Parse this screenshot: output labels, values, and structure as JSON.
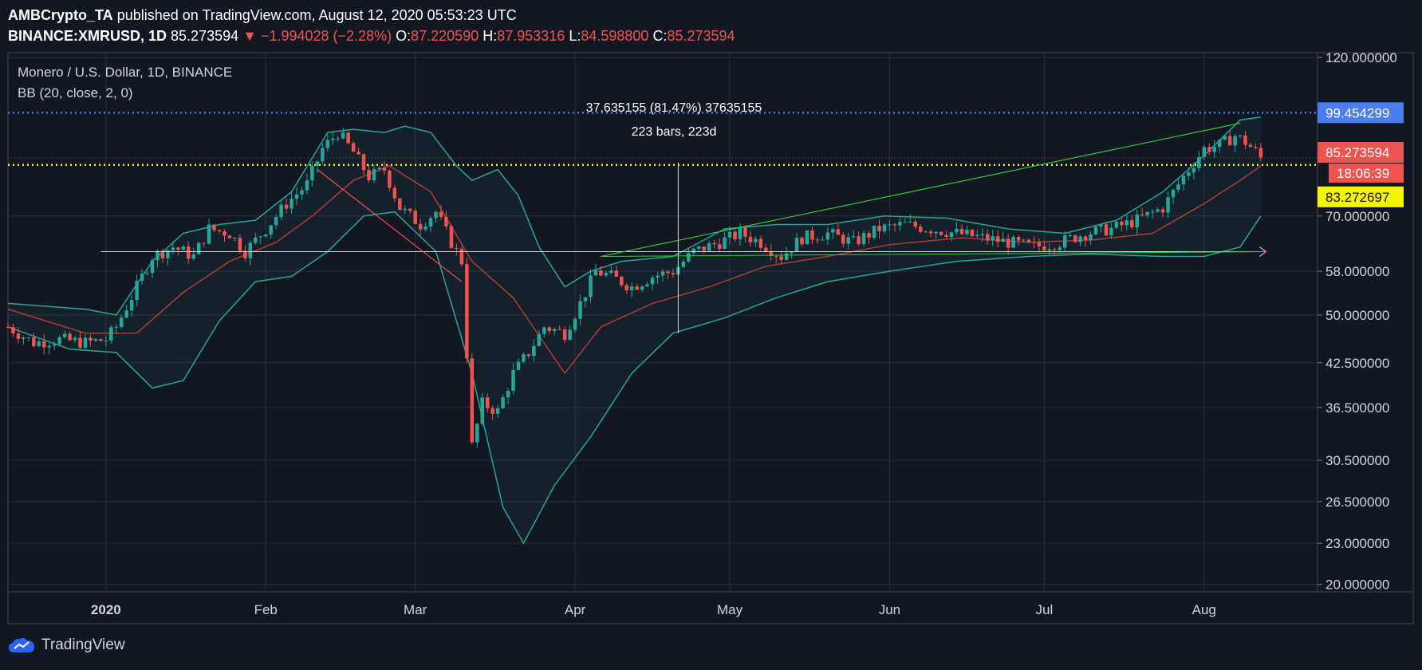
{
  "header": {
    "author": "AMBCrypto_TA",
    "published": "published on TradingView.com, August 12, 2020 05:53:23 UTC",
    "symbol": "BINANCE:XMRUSD, 1D",
    "last": "85.273594",
    "change": "▼ −1.994028 (−2.28%)",
    "o_label": "O:",
    "o": "87.220590",
    "h_label": "H:",
    "h": "87.953316",
    "l_label": "L:",
    "l": "84.598800",
    "c_label": "C:",
    "c": "85.273594"
  },
  "legend": {
    "title": "Monero / U.S. Dollar, 1D, BINANCE",
    "indicator": "BB (20, close, 2, 0)"
  },
  "footer": {
    "brand": "TradingView"
  },
  "colors": {
    "background": "#131722",
    "grid": "#2a2e39",
    "up": "#26a69a",
    "down": "#ef5350",
    "band": "#26a69a",
    "basis": "#b23a3a",
    "blue_line": "#4a7ef0",
    "yellow_line": "#f5f500",
    "trend": "#2ecc40"
  },
  "chart_data": {
    "type": "candlestick",
    "y_scale": "log",
    "ylim": [
      19.5,
      122
    ],
    "y_ticks": [
      {
        "value": 120,
        "label": "120.000000"
      },
      {
        "value": 70,
        "label": "70.000000"
      },
      {
        "value": 58,
        "label": "58.000000"
      },
      {
        "value": 50,
        "label": "50.000000"
      },
      {
        "value": 42.5,
        "label": "42.500000"
      },
      {
        "value": 36.5,
        "label": "36.500000"
      },
      {
        "value": 30.5,
        "label": "30.500000"
      },
      {
        "value": 26.5,
        "label": "26.500000"
      },
      {
        "value": 23,
        "label": "23.000000"
      },
      {
        "value": 20,
        "label": "20.000000"
      }
    ],
    "x_ticks": [
      {
        "date": "2020-01-01",
        "label": "2020"
      },
      {
        "date": "2020-02-01",
        "label": "Feb"
      },
      {
        "date": "2020-03-01",
        "label": "Mar"
      },
      {
        "date": "2020-04-01",
        "label": "Apr"
      },
      {
        "date": "2020-05-01",
        "label": "May"
      },
      {
        "date": "2020-06-01",
        "label": "Jun"
      },
      {
        "date": "2020-07-01",
        "label": "Jul"
      },
      {
        "date": "2020-08-01",
        "label": "Aug"
      }
    ],
    "x_range": [
      "2019-12-13",
      "2020-08-23"
    ],
    "closes": [
      {
        "date": "2019-12-13",
        "close": 48
      },
      {
        "date": "2019-12-18",
        "close": 45.5
      },
      {
        "date": "2019-12-23",
        "close": 46
      },
      {
        "date": "2019-12-28",
        "close": 45.5
      },
      {
        "date": "2020-01-01",
        "close": 46
      },
      {
        "date": "2020-01-03",
        "close": 48
      },
      {
        "date": "2020-01-07",
        "close": 55
      },
      {
        "date": "2020-01-10",
        "close": 61
      },
      {
        "date": "2020-01-14",
        "close": 63
      },
      {
        "date": "2020-01-18",
        "close": 61
      },
      {
        "date": "2020-01-21",
        "close": 67
      },
      {
        "date": "2020-01-25",
        "close": 66
      },
      {
        "date": "2020-01-28",
        "close": 62
      },
      {
        "date": "2020-02-01",
        "close": 67
      },
      {
        "date": "2020-02-05",
        "close": 73
      },
      {
        "date": "2020-02-09",
        "close": 78
      },
      {
        "date": "2020-02-12",
        "close": 88
      },
      {
        "date": "2020-02-15",
        "close": 93
      },
      {
        "date": "2020-02-18",
        "close": 87
      },
      {
        "date": "2020-02-21",
        "close": 80
      },
      {
        "date": "2020-02-24",
        "close": 82
      },
      {
        "date": "2020-02-27",
        "close": 72
      },
      {
        "date": "2020-03-02",
        "close": 68
      },
      {
        "date": "2020-03-05",
        "close": 71
      },
      {
        "date": "2020-03-08",
        "close": 64
      },
      {
        "date": "2020-03-10",
        "close": 60
      },
      {
        "date": "2020-03-12",
        "close": 32
      },
      {
        "date": "2020-03-14",
        "close": 37
      },
      {
        "date": "2020-03-17",
        "close": 36
      },
      {
        "date": "2020-03-20",
        "close": 41
      },
      {
        "date": "2020-03-23",
        "close": 44
      },
      {
        "date": "2020-03-26",
        "close": 48
      },
      {
        "date": "2020-03-30",
        "close": 47
      },
      {
        "date": "2020-04-02",
        "close": 52
      },
      {
        "date": "2020-04-05",
        "close": 58
      },
      {
        "date": "2020-04-08",
        "close": 57
      },
      {
        "date": "2020-04-12",
        "close": 55
      },
      {
        "date": "2020-04-16",
        "close": 57
      },
      {
        "date": "2020-04-20",
        "close": 58
      },
      {
        "date": "2020-04-24",
        "close": 62
      },
      {
        "date": "2020-04-29",
        "close": 64
      },
      {
        "date": "2020-05-03",
        "close": 66
      },
      {
        "date": "2020-05-07",
        "close": 64
      },
      {
        "date": "2020-05-11",
        "close": 61
      },
      {
        "date": "2020-05-15",
        "close": 65
      },
      {
        "date": "2020-05-20",
        "close": 66
      },
      {
        "date": "2020-05-25",
        "close": 64
      },
      {
        "date": "2020-05-30",
        "close": 67
      },
      {
        "date": "2020-06-04",
        "close": 68
      },
      {
        "date": "2020-06-09",
        "close": 67
      },
      {
        "date": "2020-06-14",
        "close": 66
      },
      {
        "date": "2020-06-19",
        "close": 65
      },
      {
        "date": "2020-06-24",
        "close": 64
      },
      {
        "date": "2020-06-29",
        "close": 63
      },
      {
        "date": "2020-07-04",
        "close": 64
      },
      {
        "date": "2020-07-09",
        "close": 66
      },
      {
        "date": "2020-07-14",
        "close": 67
      },
      {
        "date": "2020-07-19",
        "close": 69
      },
      {
        "date": "2020-07-24",
        "close": 72
      },
      {
        "date": "2020-07-28",
        "close": 80
      },
      {
        "date": "2020-08-01",
        "close": 88
      },
      {
        "date": "2020-08-04",
        "close": 89
      },
      {
        "date": "2020-08-07",
        "close": 92
      },
      {
        "date": "2020-08-09",
        "close": 90
      },
      {
        "date": "2020-08-11",
        "close": 87.2
      },
      {
        "date": "2020-08-12",
        "close": 85.27
      }
    ],
    "bb_upper": [
      {
        "date": "2019-12-13",
        "value": 52
      },
      {
        "date": "2019-12-28",
        "value": 51
      },
      {
        "date": "2020-01-03",
        "value": 50
      },
      {
        "date": "2020-01-10",
        "value": 60
      },
      {
        "date": "2020-01-16",
        "value": 66
      },
      {
        "date": "2020-01-23",
        "value": 68
      },
      {
        "date": "2020-01-30",
        "value": 69
      },
      {
        "date": "2020-02-06",
        "value": 76
      },
      {
        "date": "2020-02-13",
        "value": 93
      },
      {
        "date": "2020-02-18",
        "value": 94
      },
      {
        "date": "2020-02-24",
        "value": 93
      },
      {
        "date": "2020-02-28",
        "value": 95
      },
      {
        "date": "2020-03-04",
        "value": 93
      },
      {
        "date": "2020-03-09",
        "value": 83
      },
      {
        "date": "2020-03-12",
        "value": 79
      },
      {
        "date": "2020-03-17",
        "value": 82
      },
      {
        "date": "2020-03-21",
        "value": 75
      },
      {
        "date": "2020-03-25",
        "value": 63
      },
      {
        "date": "2020-03-30",
        "value": 55
      },
      {
        "date": "2020-04-04",
        "value": 58
      },
      {
        "date": "2020-04-10",
        "value": 60
      },
      {
        "date": "2020-04-20",
        "value": 61
      },
      {
        "date": "2020-04-30",
        "value": 67
      },
      {
        "date": "2020-05-10",
        "value": 68
      },
      {
        "date": "2020-05-20",
        "value": 68
      },
      {
        "date": "2020-05-31",
        "value": 70
      },
      {
        "date": "2020-06-12",
        "value": 69.5
      },
      {
        "date": "2020-06-24",
        "value": 67
      },
      {
        "date": "2020-07-05",
        "value": 66
      },
      {
        "date": "2020-07-15",
        "value": 69
      },
      {
        "date": "2020-07-24",
        "value": 76
      },
      {
        "date": "2020-08-01",
        "value": 86
      },
      {
        "date": "2020-08-08",
        "value": 97
      },
      {
        "date": "2020-08-12",
        "value": 98
      }
    ],
    "bb_basis": [
      {
        "date": "2019-12-13",
        "value": 51
      },
      {
        "date": "2019-12-28",
        "value": 47
      },
      {
        "date": "2020-01-07",
        "value": 47
      },
      {
        "date": "2020-01-16",
        "value": 54
      },
      {
        "date": "2020-01-25",
        "value": 60
      },
      {
        "date": "2020-02-03",
        "value": 64
      },
      {
        "date": "2020-02-10",
        "value": 70
      },
      {
        "date": "2020-02-18",
        "value": 79
      },
      {
        "date": "2020-02-25",
        "value": 83
      },
      {
        "date": "2020-03-04",
        "value": 76
      },
      {
        "date": "2020-03-12",
        "value": 60
      },
      {
        "date": "2020-03-20",
        "value": 53
      },
      {
        "date": "2020-03-30",
        "value": 41
      },
      {
        "date": "2020-04-06",
        "value": 48
      },
      {
        "date": "2020-04-16",
        "value": 52
      },
      {
        "date": "2020-04-27",
        "value": 55
      },
      {
        "date": "2020-05-08",
        "value": 59
      },
      {
        "date": "2020-05-20",
        "value": 61
      },
      {
        "date": "2020-06-01",
        "value": 63.5
      },
      {
        "date": "2020-06-15",
        "value": 65
      },
      {
        "date": "2020-06-28",
        "value": 64
      },
      {
        "date": "2020-07-10",
        "value": 64.5
      },
      {
        "date": "2020-07-22",
        "value": 66
      },
      {
        "date": "2020-08-01",
        "value": 73
      },
      {
        "date": "2020-08-08",
        "value": 79
      },
      {
        "date": "2020-08-12",
        "value": 83
      }
    ],
    "bb_lower": [
      {
        "date": "2019-12-13",
        "value": 48
      },
      {
        "date": "2019-12-25",
        "value": 44.5
      },
      {
        "date": "2020-01-03",
        "value": 44
      },
      {
        "date": "2020-01-10",
        "value": 39
      },
      {
        "date": "2020-01-16",
        "value": 40
      },
      {
        "date": "2020-01-23",
        "value": 49
      },
      {
        "date": "2020-01-30",
        "value": 56
      },
      {
        "date": "2020-02-06",
        "value": 57
      },
      {
        "date": "2020-02-13",
        "value": 62
      },
      {
        "date": "2020-02-20",
        "value": 70
      },
      {
        "date": "2020-02-26",
        "value": 71
      },
      {
        "date": "2020-03-05",
        "value": 62
      },
      {
        "date": "2020-03-12",
        "value": 41
      },
      {
        "date": "2020-03-18",
        "value": 26
      },
      {
        "date": "2020-03-22",
        "value": 23
      },
      {
        "date": "2020-03-28",
        "value": 28
      },
      {
        "date": "2020-04-04",
        "value": 33
      },
      {
        "date": "2020-04-12",
        "value": 41
      },
      {
        "date": "2020-04-20",
        "value": 47
      },
      {
        "date": "2020-04-30",
        "value": 49.5
      },
      {
        "date": "2020-05-10",
        "value": 53
      },
      {
        "date": "2020-05-20",
        "value": 56
      },
      {
        "date": "2020-06-01",
        "value": 58
      },
      {
        "date": "2020-06-14",
        "value": 60
      },
      {
        "date": "2020-06-28",
        "value": 61
      },
      {
        "date": "2020-07-10",
        "value": 61.5
      },
      {
        "date": "2020-07-24",
        "value": 61
      },
      {
        "date": "2020-08-01",
        "value": 61
      },
      {
        "date": "2020-08-08",
        "value": 63
      },
      {
        "date": "2020-08-12",
        "value": 70
      }
    ],
    "lines": [
      {
        "name": "blue",
        "value": 99.454299,
        "label": "99.454299",
        "color": "#4a7ef0"
      },
      {
        "name": "yellow",
        "value": 83.272697,
        "label": "83.272697",
        "color": "#f5f500"
      }
    ],
    "price_tag": {
      "value": 85.273594,
      "label": "85.273594",
      "countdown": "18:06:39"
    },
    "annotations": {
      "measure_text": "37.635155 (81.47%) 37635155",
      "bars_text": "223 bars, 223d",
      "white_line": {
        "from": "2019-12-31",
        "to": "2020-08-13",
        "value": 62
      },
      "white_vertical": {
        "date": "2020-04-21",
        "from": 47,
        "to": 84
      },
      "green_trend": {
        "from_date": "2020-04-06",
        "from_value": 61,
        "to_date": "2020-08-08",
        "to_value": 96
      },
      "red_trend": {
        "from_date": "2020-02-11",
        "from_value": 82,
        "to_date": "2020-03-10",
        "to_value": 56
      }
    }
  }
}
